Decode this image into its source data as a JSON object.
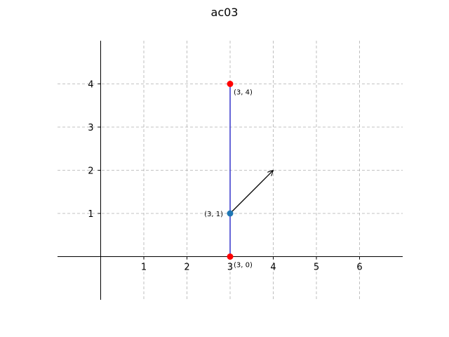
{
  "chart_data": {
    "type": "scatter",
    "title": "ac03",
    "xlabel": "",
    "ylabel": "",
    "xlim": [
      -1,
      7
    ],
    "ylim": [
      -1,
      5
    ],
    "xticks": [
      1,
      2,
      3,
      4,
      5,
      6
    ],
    "yticks": [
      1,
      2,
      3,
      4
    ],
    "grid": true,
    "segment": {
      "from": [
        3,
        0
      ],
      "to": [
        3,
        4
      ],
      "color": "#3333cc"
    },
    "points": [
      {
        "x": 3,
        "y": 4,
        "label": "(3, 4)",
        "color": "#ff0000"
      },
      {
        "x": 3,
        "y": 0,
        "label": "(3, 0)",
        "color": "#ff0000"
      },
      {
        "x": 3,
        "y": 1,
        "label": "(3, 1)",
        "color": "#1f77b4"
      }
    ],
    "arrow": {
      "from": [
        3,
        1
      ],
      "to": [
        4,
        2
      ],
      "color": "#000000"
    }
  }
}
